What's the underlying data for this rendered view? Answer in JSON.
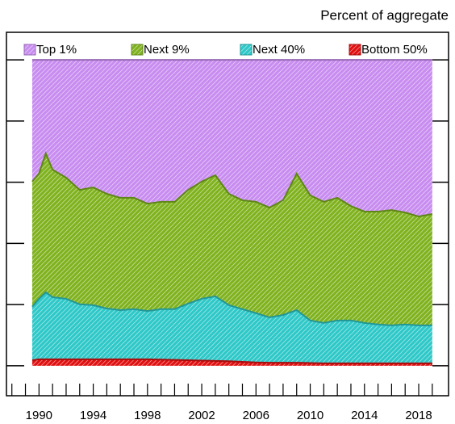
{
  "chart_data": {
    "type": "stacked-area",
    "subtitle": "Percent of aggregate",
    "x": [
      1989.5,
      1990,
      1990.5,
      1991,
      1992,
      1993,
      1994,
      1995,
      1996,
      1997,
      1998,
      1999,
      2000,
      2001,
      2002,
      2003,
      2004,
      2005,
      2006,
      2007,
      2008,
      2009,
      2010,
      2011,
      2012,
      2013,
      2014,
      2015,
      2016,
      2017,
      2018,
      2019
    ],
    "series": [
      {
        "name": "Top 1%",
        "color": "#c88cf0",
        "values": [
          39.8,
          37.2,
          30.6,
          35.9,
          38.5,
          42.5,
          41.7,
          43.8,
          45.1,
          45.1,
          47.0,
          46.4,
          46.4,
          42.5,
          39.8,
          37.7,
          43.8,
          45.9,
          46.4,
          48.3,
          45.9,
          37.2,
          44.3,
          46.4,
          45.1,
          47.8,
          49.6,
          49.6,
          49.1,
          49.9,
          51.2,
          50.4
        ]
      },
      {
        "name": "Next 9%",
        "color": "#7fb21e",
        "values": [
          40.9,
          40.9,
          45.4,
          41.7,
          39.6,
          37.4,
          38.5,
          37.5,
          36.7,
          36.4,
          35.1,
          35.1,
          35.1,
          37.2,
          38.3,
          39.6,
          36.4,
          35.6,
          36.4,
          35.9,
          37.5,
          44.6,
          40.9,
          39.6,
          40.1,
          37.4,
          36.4,
          36.9,
          37.7,
          36.6,
          35.6,
          36.4
        ]
      },
      {
        "name": "Next 40%",
        "color": "#2ec8c8",
        "values": [
          17.5,
          19.8,
          21.9,
          20.3,
          19.8,
          18.0,
          17.7,
          16.6,
          16.1,
          16.4,
          15.8,
          16.5,
          16.6,
          18.5,
          20.2,
          21.1,
          18.3,
          17.2,
          16.1,
          14.8,
          15.6,
          17.2,
          13.9,
          13.2,
          14.0,
          14.0,
          13.2,
          12.7,
          12.4,
          12.7,
          12.4,
          12.4
        ]
      },
      {
        "name": "Bottom 50%",
        "color": "#e01010",
        "values": [
          1.8,
          2.1,
          2.1,
          2.1,
          2.1,
          2.1,
          2.1,
          2.1,
          2.1,
          2.1,
          2.1,
          2.0,
          1.9,
          1.8,
          1.7,
          1.6,
          1.5,
          1.3,
          1.1,
          1.0,
          1.0,
          1.0,
          0.9,
          0.8,
          0.8,
          0.8,
          0.8,
          0.8,
          0.8,
          0.8,
          0.8,
          0.8
        ]
      }
    ],
    "xlim": [
      1987.6,
      2020.2
    ],
    "xticks": [
      1990,
      1994,
      1998,
      2002,
      2006,
      2010,
      2014,
      2018
    ],
    "minor_xticks": [
      1988,
      1989,
      1990,
      1991,
      1992,
      1993,
      1994,
      1995,
      1996,
      1997,
      1998,
      1999,
      2000,
      2001,
      2002,
      2003,
      2004,
      2005,
      2006,
      2007,
      2008,
      2009,
      2010,
      2011,
      2012,
      2013,
      2014,
      2015,
      2016,
      2017,
      2018,
      2019
    ],
    "ylim": [
      -9.8,
      109
    ],
    "yticks": [
      0,
      20,
      40,
      60,
      80,
      100
    ],
    "ytick_labels": false,
    "hatched": true
  }
}
